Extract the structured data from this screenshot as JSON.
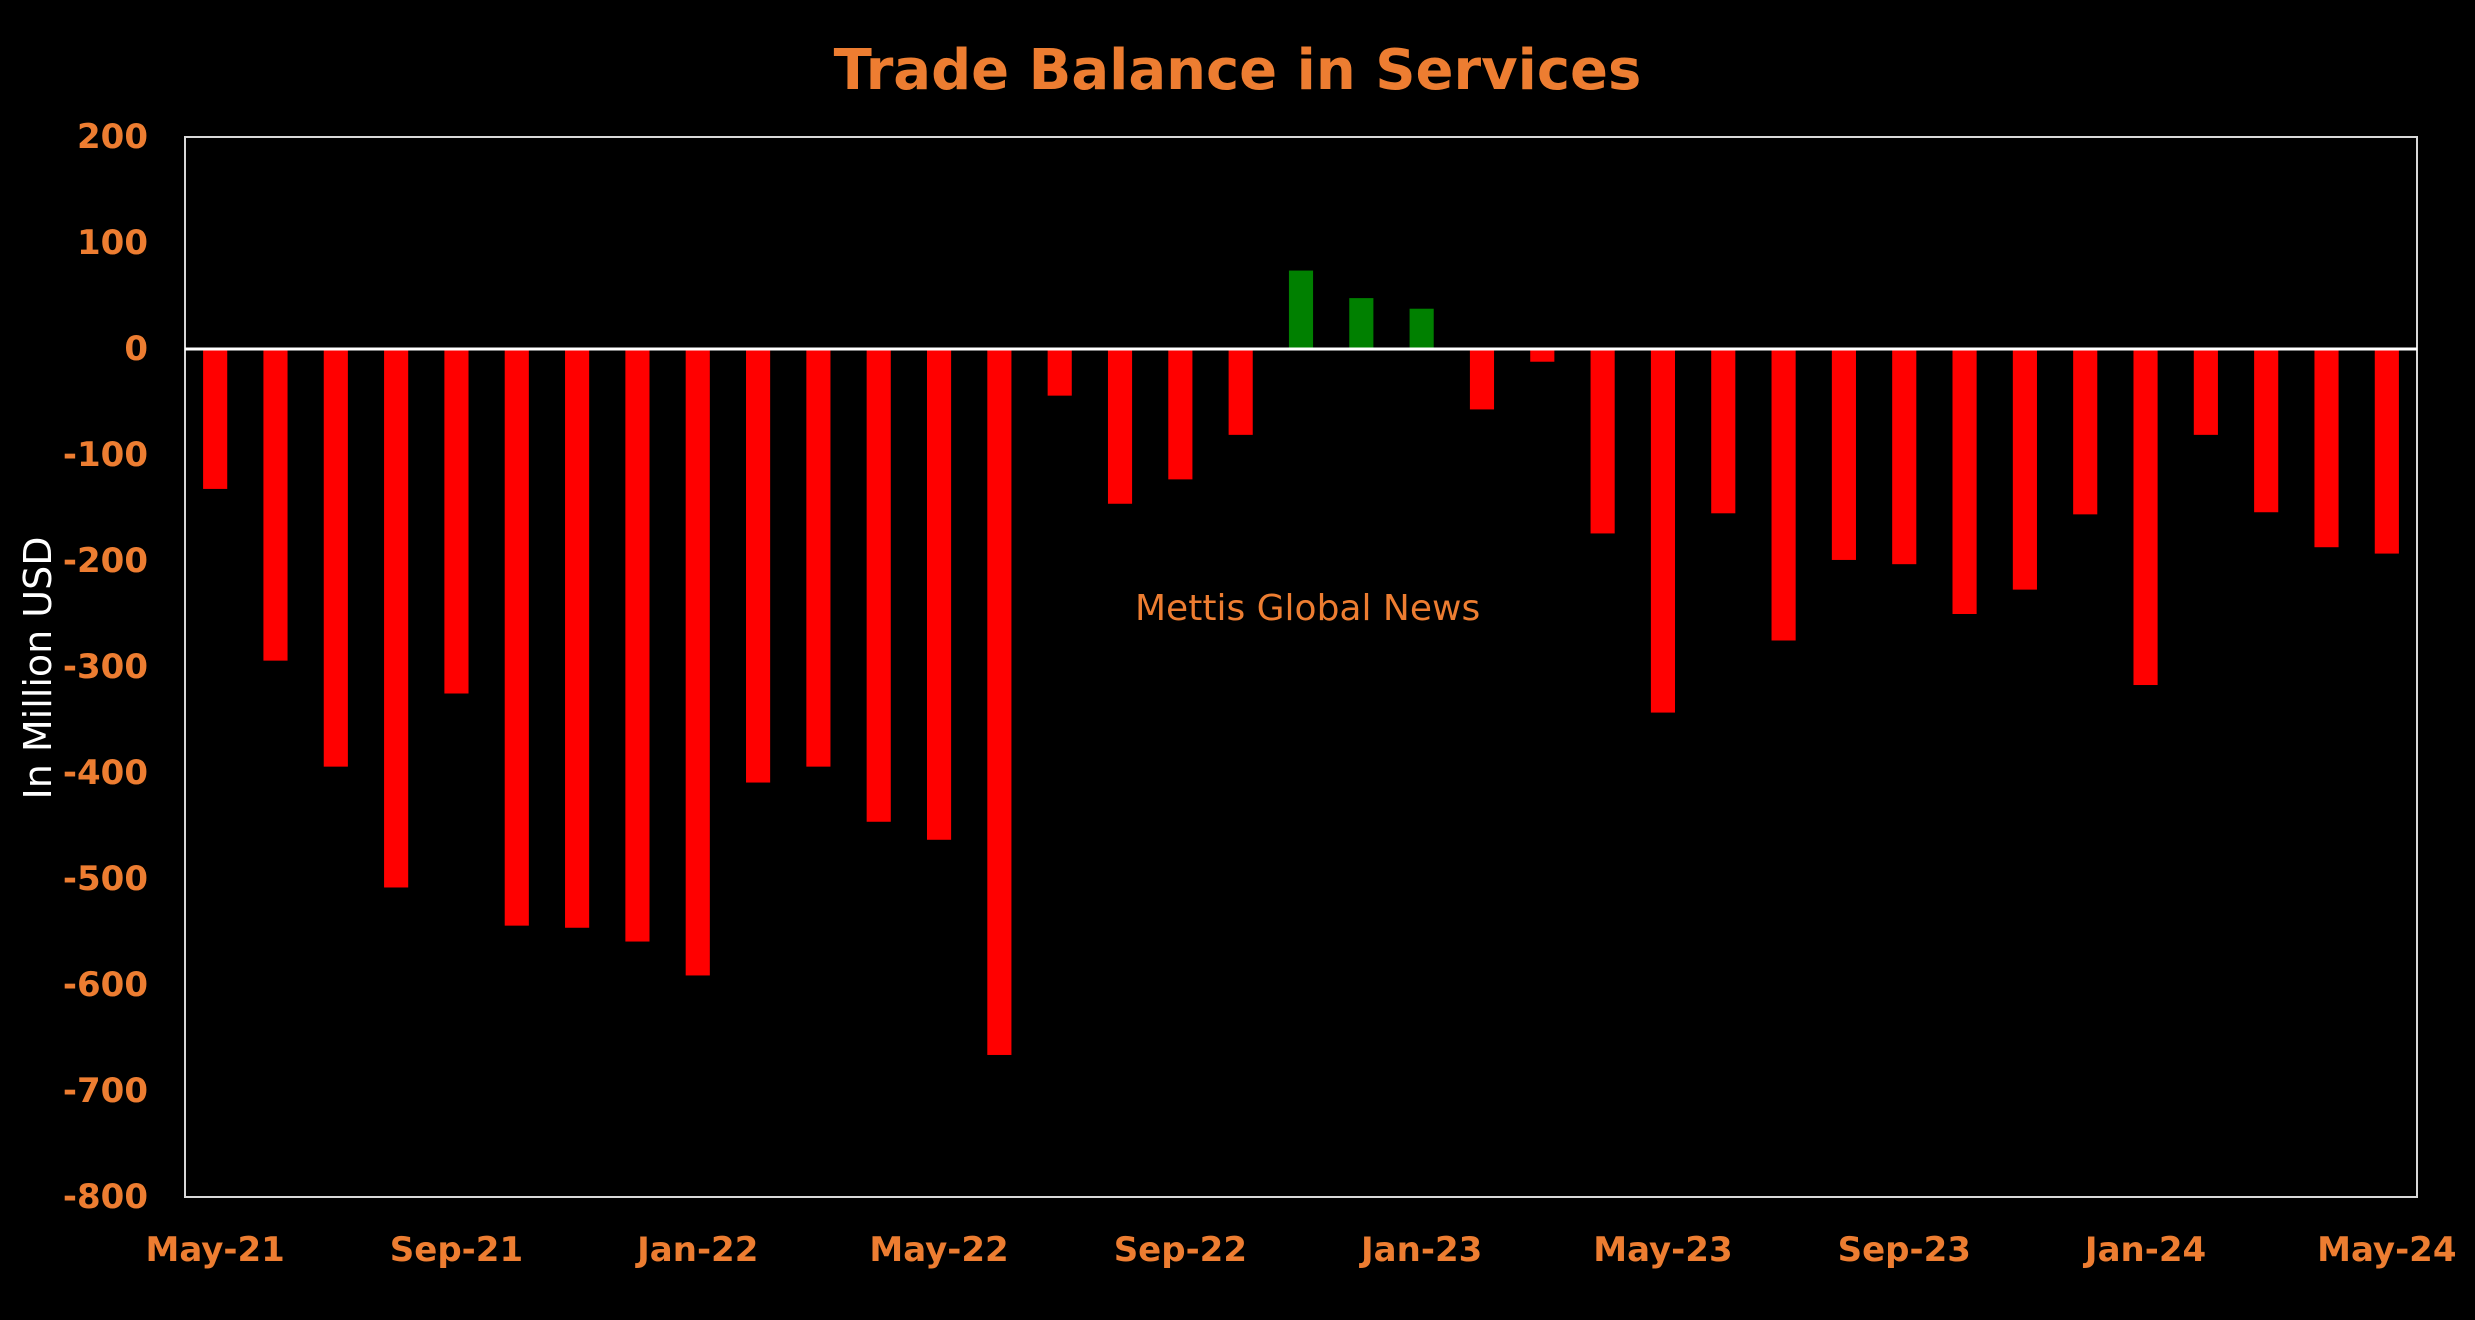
{
  "chart_data": {
    "type": "bar",
    "title": "Trade Balance in Services",
    "ylabel": "In Million USD",
    "xlabel": "",
    "watermark": "Mettis Global News",
    "ylim": [
      -800,
      200
    ],
    "yticks": [
      200,
      100,
      0,
      -100,
      -200,
      -300,
      -400,
      -500,
      -600,
      -700,
      -800
    ],
    "xtick_labels": [
      "May-21",
      "Sep-21",
      "Jan-22",
      "May-22",
      "Sep-22",
      "Jan-23",
      "May-23",
      "Sep-23",
      "Jan-24",
      "May-24"
    ],
    "grid": false,
    "colors": {
      "negative": "#FF0000",
      "positive": "#008000",
      "text": "#ED7D31",
      "axis": "#FFFFFF",
      "background": "#000000"
    },
    "categories": [
      "May-21",
      "Jun-21",
      "Jul-21",
      "Aug-21",
      "Sep-21",
      "Oct-21",
      "Nov-21",
      "Dec-21",
      "Jan-22",
      "Feb-22",
      "Mar-22",
      "Apr-22",
      "May-22",
      "Jun-22",
      "Jul-22",
      "Aug-22",
      "Sep-22",
      "Oct-22",
      "Nov-22",
      "Dec-22",
      "Jan-23",
      "Feb-23",
      "Mar-23",
      "Apr-23",
      "May-23",
      "Jun-23",
      "Jul-23",
      "Aug-23",
      "Sep-23",
      "Oct-23",
      "Nov-23",
      "Dec-23",
      "Jan-24",
      "Feb-24",
      "Mar-24",
      "Apr-24",
      "May-24"
    ],
    "values": [
      -132,
      -294,
      -394,
      -508,
      -325,
      -544,
      -546,
      -559,
      -591,
      -409,
      -394,
      -446,
      -463,
      -666,
      -44,
      -146,
      -123,
      -81,
      74,
      48,
      38,
      -57,
      -12,
      -174,
      -343,
      -155,
      -275,
      -199,
      -203,
      -250,
      -227,
      -156,
      -317,
      -81,
      -154,
      -187,
      -193
    ]
  }
}
